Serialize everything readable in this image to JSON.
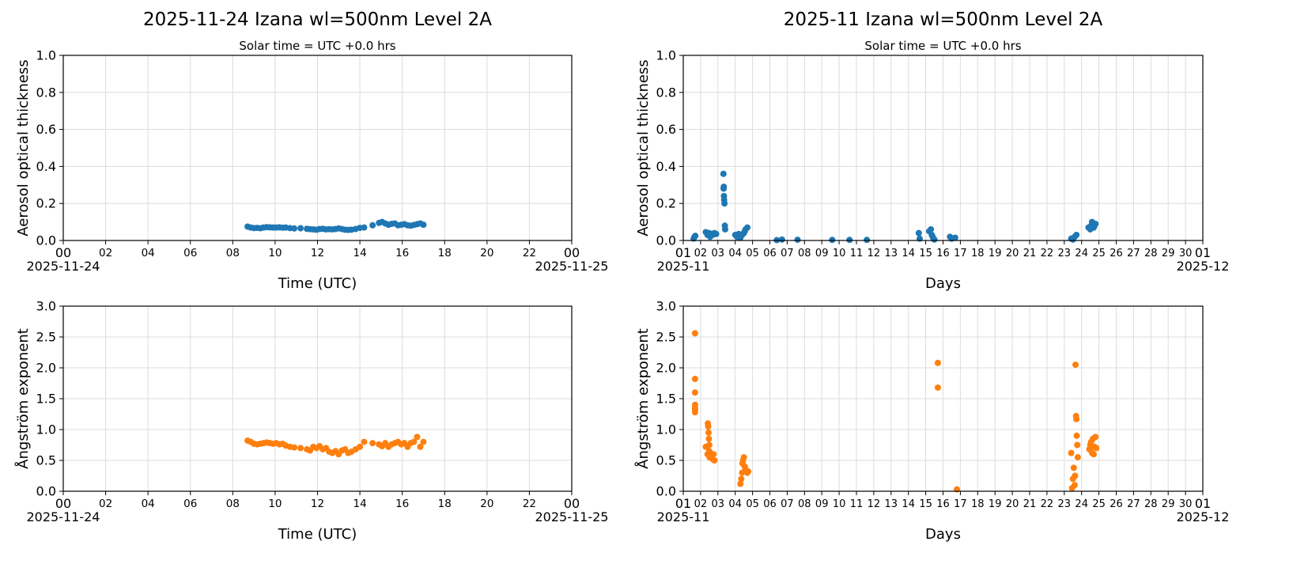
{
  "chart_data": [
    {
      "type": "scatter",
      "title": "2025-11-24  Izana  wl=500nm  Level 2A",
      "subtitle": "Solar time = UTC +0.0 hrs",
      "xlabel": "Time (UTC)",
      "ylabel": "Aerosol optical thickness",
      "xlim": [
        0,
        24
      ],
      "ylim": [
        0,
        1.0
      ],
      "xticks": [
        "00",
        "02",
        "04",
        "06",
        "08",
        "10",
        "12",
        "14",
        "16",
        "18",
        "20",
        "22",
        "00"
      ],
      "yticks": [
        "0.0",
        "0.2",
        "0.4",
        "0.6",
        "0.8",
        "1.0"
      ],
      "date_labels": [
        "2025-11-24",
        "2025-11-25"
      ],
      "grid": true,
      "color": "#1f77b4",
      "x": [
        8.7,
        8.85,
        9.0,
        9.15,
        9.3,
        9.45,
        9.6,
        9.75,
        9.9,
        10.05,
        10.2,
        10.35,
        10.5,
        10.7,
        10.9,
        11.2,
        11.5,
        11.65,
        11.8,
        11.95,
        12.1,
        12.25,
        12.4,
        12.55,
        12.7,
        12.85,
        13.0,
        13.15,
        13.3,
        13.45,
        13.6,
        13.8,
        14.0,
        14.2,
        14.6,
        14.9,
        15.05,
        15.2,
        15.35,
        15.5,
        15.65,
        15.8,
        15.95,
        16.1,
        16.25,
        16.4,
        16.55,
        16.7,
        16.85,
        17.0
      ],
      "y": [
        0.075,
        0.07,
        0.067,
        0.068,
        0.066,
        0.07,
        0.072,
        0.071,
        0.07,
        0.07,
        0.071,
        0.069,
        0.07,
        0.067,
        0.065,
        0.066,
        0.063,
        0.061,
        0.06,
        0.058,
        0.062,
        0.063,
        0.06,
        0.061,
        0.06,
        0.062,
        0.065,
        0.062,
        0.058,
        0.057,
        0.058,
        0.062,
        0.068,
        0.07,
        0.082,
        0.095,
        0.1,
        0.092,
        0.085,
        0.09,
        0.092,
        0.082,
        0.085,
        0.088,
        0.082,
        0.08,
        0.084,
        0.088,
        0.092,
        0.085
      ]
    },
    {
      "type": "scatter",
      "title": "2025-11  Izana  wl=500nm  Level 2A",
      "subtitle": "Solar time = UTC +0.0 hrs",
      "xlabel": "Days",
      "ylabel": "Aerosol optical thickness",
      "xlim": [
        1,
        31
      ],
      "ylim": [
        0,
        1.0
      ],
      "xticks": [
        "01",
        "02",
        "03",
        "04",
        "05",
        "06",
        "07",
        "08",
        "09",
        "10",
        "11",
        "12",
        "13",
        "14",
        "15",
        "16",
        "17",
        "18",
        "19",
        "20",
        "21",
        "22",
        "23",
        "24",
        "25",
        "26",
        "27",
        "28",
        "29",
        "30",
        "01"
      ],
      "yticks": [
        "0.0",
        "0.2",
        "0.4",
        "0.6",
        "0.8",
        "1.0"
      ],
      "date_labels": [
        "2025-11",
        "2025-12"
      ],
      "grid": true,
      "color": "#1f77b4",
      "x": [
        1.6,
        1.65,
        1.7,
        2.3,
        2.4,
        2.5,
        2.55,
        2.6,
        2.7,
        2.8,
        2.9,
        3.32,
        3.33,
        3.34,
        3.35,
        3.36,
        3.38,
        3.4,
        3.42,
        4.0,
        4.1,
        4.2,
        4.3,
        4.4,
        4.5,
        4.55,
        4.6,
        4.7,
        6.4,
        6.7,
        7.6,
        9.6,
        10.6,
        11.6,
        14.6,
        14.65,
        15.2,
        15.3,
        15.35,
        15.4,
        15.45,
        15.5,
        16.4,
        16.5,
        16.7,
        23.4,
        23.5,
        23.6,
        23.7,
        24.4,
        24.5,
        24.55,
        24.6,
        24.65,
        24.7,
        24.75,
        24.8
      ],
      "y": [
        0.01,
        0.02,
        0.025,
        0.045,
        0.03,
        0.04,
        0.02,
        0.035,
        0.03,
        0.04,
        0.035,
        0.36,
        0.28,
        0.29,
        0.24,
        0.22,
        0.2,
        0.08,
        0.06,
        0.03,
        0.02,
        0.035,
        0.015,
        0.03,
        0.04,
        0.05,
        0.06,
        0.07,
        0.002,
        0.005,
        0.004,
        0.003,
        0.003,
        0.003,
        0.04,
        0.01,
        0.05,
        0.06,
        0.03,
        0.02,
        0.01,
        0.005,
        0.02,
        0.01,
        0.015,
        0.01,
        0.005,
        0.02,
        0.03,
        0.07,
        0.06,
        0.08,
        0.1,
        0.09,
        0.07,
        0.08,
        0.09
      ]
    },
    {
      "type": "scatter",
      "xlabel": "Time (UTC)",
      "ylabel": "Ångström exponent",
      "xlim": [
        0,
        24
      ],
      "ylim": [
        0,
        3.0
      ],
      "xticks": [
        "00",
        "02",
        "04",
        "06",
        "08",
        "10",
        "12",
        "14",
        "16",
        "18",
        "20",
        "22",
        "00"
      ],
      "yticks": [
        "0.0",
        "0.5",
        "1.0",
        "1.5",
        "2.0",
        "2.5",
        "3.0"
      ],
      "date_labels": [
        "2025-11-24",
        "2025-11-25"
      ],
      "grid": true,
      "color": "#ff7f0e",
      "x": [
        8.7,
        8.85,
        9.0,
        9.15,
        9.3,
        9.45,
        9.6,
        9.75,
        9.9,
        10.05,
        10.2,
        10.35,
        10.5,
        10.7,
        10.9,
        11.2,
        11.5,
        11.65,
        11.8,
        11.95,
        12.1,
        12.25,
        12.4,
        12.55,
        12.7,
        12.85,
        13.0,
        13.15,
        13.3,
        13.45,
        13.6,
        13.8,
        14.0,
        14.2,
        14.6,
        14.9,
        15.05,
        15.2,
        15.35,
        15.5,
        15.65,
        15.8,
        15.95,
        16.1,
        16.25,
        16.4,
        16.55,
        16.7,
        16.85,
        17.0
      ],
      "y": [
        0.82,
        0.8,
        0.77,
        0.76,
        0.77,
        0.78,
        0.79,
        0.78,
        0.77,
        0.78,
        0.76,
        0.77,
        0.74,
        0.72,
        0.71,
        0.7,
        0.68,
        0.66,
        0.72,
        0.7,
        0.73,
        0.68,
        0.7,
        0.64,
        0.62,
        0.65,
        0.6,
        0.66,
        0.68,
        0.62,
        0.64,
        0.68,
        0.72,
        0.8,
        0.78,
        0.76,
        0.73,
        0.78,
        0.72,
        0.76,
        0.78,
        0.8,
        0.76,
        0.78,
        0.72,
        0.78,
        0.8,
        0.88,
        0.72,
        0.8
      ]
    },
    {
      "type": "scatter",
      "xlabel": "Days",
      "ylabel": "Ångström exponent",
      "xlim": [
        1,
        31
      ],
      "ylim": [
        0,
        3.0
      ],
      "xticks": [
        "01",
        "02",
        "03",
        "04",
        "05",
        "06",
        "07",
        "08",
        "09",
        "10",
        "11",
        "12",
        "13",
        "14",
        "15",
        "16",
        "17",
        "18",
        "19",
        "20",
        "21",
        "22",
        "23",
        "24",
        "25",
        "26",
        "27",
        "28",
        "29",
        "30",
        "01"
      ],
      "yticks": [
        "0.0",
        "0.5",
        "1.0",
        "1.5",
        "2.0",
        "2.5",
        "3.0"
      ],
      "date_labels": [
        "2025-11",
        "2025-12"
      ],
      "grid": true,
      "color": "#ff7f0e",
      "x": [
        1.68,
        1.68,
        1.68,
        1.68,
        1.68,
        1.68,
        1.68,
        2.3,
        2.4,
        2.42,
        2.44,
        2.46,
        2.48,
        2.5,
        2.5,
        2.52,
        2.55,
        2.6,
        2.65,
        2.7,
        2.75,
        2.8,
        4.3,
        4.35,
        4.4,
        4.42,
        4.45,
        4.5,
        4.55,
        4.6,
        4.7,
        4.75,
        15.7,
        15.7,
        16.8,
        23.4,
        23.45,
        23.5,
        23.55,
        23.6,
        23.62,
        23.65,
        23.68,
        23.7,
        23.72,
        23.75,
        23.78,
        24.45,
        24.5,
        24.55,
        24.6,
        24.65,
        24.7,
        24.75,
        24.8,
        24.85
      ],
      "y": [
        2.56,
        1.82,
        1.6,
        1.4,
        1.35,
        1.32,
        1.28,
        0.72,
        0.6,
        1.1,
        1.05,
        0.95,
        0.85,
        0.75,
        0.65,
        0.55,
        0.62,
        0.58,
        0.55,
        0.52,
        0.6,
        0.5,
        0.12,
        0.2,
        0.3,
        0.45,
        0.5,
        0.55,
        0.4,
        0.35,
        0.3,
        0.32,
        2.08,
        1.68,
        0.03,
        0.62,
        0.05,
        0.2,
        0.38,
        0.1,
        0.25,
        2.05,
        1.22,
        1.17,
        0.9,
        0.75,
        0.55,
        0.68,
        0.75,
        0.8,
        0.62,
        0.85,
        0.6,
        0.72,
        0.88,
        0.7
      ]
    }
  ]
}
